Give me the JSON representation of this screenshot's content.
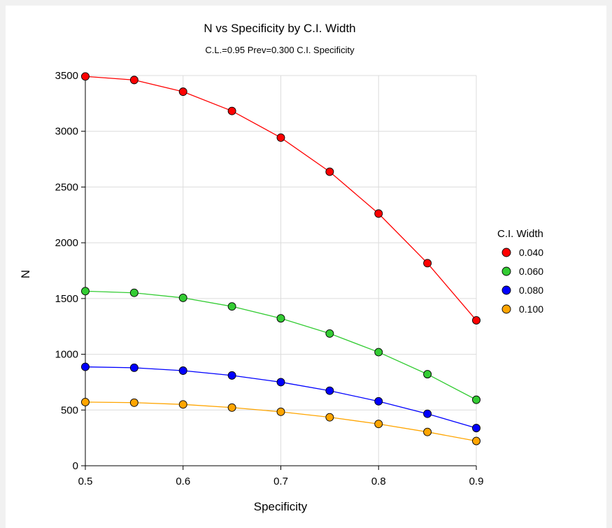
{
  "chart_data": {
    "type": "line",
    "title": "N vs Specificity by C.I. Width",
    "subtitle": "C.L.=0.95 Prev=0.300 C.I. Specificity",
    "xlabel": "Specificity",
    "ylabel": "N",
    "xlim": [
      0.5,
      0.9
    ],
    "ylim": [
      0,
      3500
    ],
    "xticks": [
      "0.5",
      "0.6",
      "0.7",
      "0.8",
      "0.9"
    ],
    "yticks": [
      "0",
      "500",
      "1000",
      "1500",
      "2000",
      "2500",
      "3000",
      "3500"
    ],
    "grid": true,
    "legend_title": "C.I. Width",
    "legend_position": "right",
    "x": [
      0.5,
      0.55,
      0.6,
      0.65,
      0.7,
      0.75,
      0.8,
      0.85,
      0.9
    ],
    "series": [
      {
        "name": "0.040",
        "color": "#ff0000",
        "values": [
          3492,
          3460,
          3355,
          3182,
          2943,
          2637,
          2262,
          1817,
          1304
        ]
      },
      {
        "name": "0.060",
        "color": "#33cc33",
        "values": [
          1566,
          1551,
          1506,
          1429,
          1322,
          1186,
          1019,
          821,
          592
        ]
      },
      {
        "name": "0.080",
        "color": "#0000ff",
        "values": [
          887,
          879,
          853,
          810,
          750,
          673,
          578,
          466,
          338
        ]
      },
      {
        "name": "0.100",
        "color": "#ffa500",
        "values": [
          571,
          566,
          550,
          522,
          484,
          435,
          375,
          303,
          222
        ]
      }
    ]
  }
}
